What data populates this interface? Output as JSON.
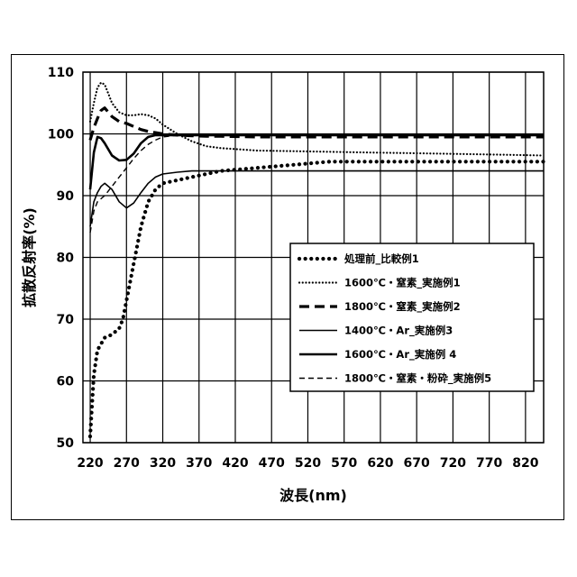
{
  "chart_data": {
    "type": "line",
    "xlabel": "波長(nm)",
    "ylabel": "拡散反射率(%)",
    "xlim": [
      210,
      845
    ],
    "ylim": [
      50,
      110
    ],
    "xticks": [
      220,
      270,
      320,
      370,
      420,
      470,
      520,
      570,
      620,
      670,
      720,
      770,
      820
    ],
    "yticks": [
      50,
      60,
      70,
      80,
      90,
      100,
      110
    ],
    "grid": true,
    "legend_position": "lower-right",
    "series": [
      {
        "name": "処理前_比較例1",
        "style": "bold-dotted",
        "x": [
          220,
          225,
          230,
          235,
          240,
          250,
          260,
          265,
          270,
          280,
          290,
          300,
          310,
          320,
          340,
          360,
          380,
          400,
          450,
          500,
          550,
          600,
          700,
          800,
          845
        ],
        "y": [
          51,
          61,
          65,
          66,
          67,
          67.5,
          68.5,
          70,
          73,
          79,
          85,
          89,
          91,
          92,
          92.5,
          93,
          93.5,
          94,
          94.5,
          95,
          95.5,
          95.5,
          95.5,
          95.5,
          95.5
        ]
      },
      {
        "name": "1600℃・窒素_実施例1",
        "style": "dotted",
        "x": [
          220,
          225,
          230,
          235,
          240,
          245,
          250,
          260,
          270,
          280,
          290,
          300,
          310,
          320,
          340,
          360,
          380,
          400,
          450,
          500,
          600,
          700,
          800,
          845
        ],
        "y": [
          102,
          105,
          107.5,
          108.3,
          108,
          106.5,
          105,
          103.5,
          103,
          103,
          103.2,
          103,
          102.5,
          101.5,
          100,
          98.8,
          98,
          97.7,
          97.3,
          97.2,
          97,
          96.8,
          96.6,
          96.5
        ]
      },
      {
        "name": "1800℃・窒素_実施例2",
        "style": "dashed",
        "x": [
          220,
          225,
          230,
          235,
          240,
          250,
          260,
          270,
          280,
          290,
          300,
          310,
          320,
          340,
          360,
          380,
          400,
          450,
          500,
          600,
          700,
          800,
          845
        ],
        "y": [
          99,
          101,
          102.5,
          103.8,
          104.2,
          102.8,
          102,
          101.7,
          101.2,
          100.7,
          100.4,
          100.2,
          100,
          99.8,
          99.7,
          99.6,
          99.6,
          99.5,
          99.5,
          99.5,
          99.5,
          99.5,
          99.5
        ]
      },
      {
        "name": "1400℃・Ar_実施例3",
        "style": "thin-solid",
        "x": [
          220,
          225,
          230,
          235,
          240,
          250,
          260,
          270,
          280,
          290,
          300,
          310,
          320,
          340,
          360,
          380,
          400,
          450,
          500,
          600,
          700,
          800,
          845
        ],
        "y": [
          85,
          89,
          90.5,
          91.5,
          92,
          91,
          89,
          88,
          88.8,
          90.5,
          92,
          93,
          93.5,
          93.8,
          94,
          94,
          94,
          94,
          94,
          94,
          94,
          94,
          94
        ]
      },
      {
        "name": "1600℃・Ar_実施例 4",
        "style": "solid",
        "x": [
          220,
          225,
          230,
          235,
          240,
          250,
          260,
          270,
          280,
          290,
          300,
          310,
          320,
          340,
          360,
          380,
          400,
          450,
          500,
          600,
          700,
          800,
          845
        ],
        "y": [
          91,
          97,
          99.5,
          99.3,
          98.5,
          96.5,
          95.7,
          95.8,
          96.8,
          98.5,
          99.5,
          99.8,
          99.8,
          99.8,
          99.8,
          99.8,
          99.8,
          99.8,
          99.8,
          99.8,
          99.8,
          99.8,
          99.8
        ]
      },
      {
        "name": "1800℃・窒素・粉砕_実施例5",
        "style": "thin-dashed",
        "x": [
          220,
          225,
          230,
          235,
          240,
          250,
          260,
          270,
          280,
          290,
          300,
          310,
          320,
          340,
          360,
          380,
          400,
          450,
          500,
          600,
          700,
          800,
          845
        ],
        "y": [
          84,
          87.5,
          89,
          89.5,
          90,
          91.5,
          93,
          94.5,
          96,
          97.3,
          98.3,
          99,
          99.5,
          99.8,
          99.9,
          99.9,
          99.9,
          99.9,
          99.9,
          99.9,
          99.9,
          99.9,
          99.9
        ]
      }
    ]
  }
}
